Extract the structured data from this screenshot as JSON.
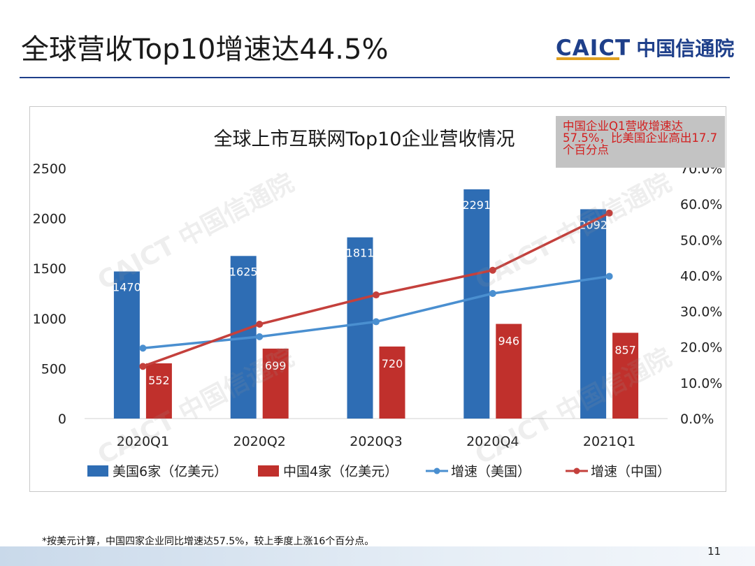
{
  "slide": {
    "title": "全球营收Top10增速达44.5%",
    "logo_mark": "CAICT",
    "logo_cn": "中国信通院",
    "footnote": "*按美元计算，中国四家企业同比增速达57.5%，较上季度上涨16个百分点。",
    "page_number": "11",
    "watermark": "CAICT 中国信通院"
  },
  "callout": {
    "text": "中国企业Q1营收增速达57.5%，比美国企业高出17.7个百分点"
  },
  "colors": {
    "us_bar": "#2e6db4",
    "cn_bar": "#c0302c",
    "us_line": "#4a8fd0",
    "cn_line": "#c4403c",
    "brand": "#1e3f8a"
  },
  "chart_data": {
    "type": "bar",
    "title": "全球上市互联网Top10企业营收情况",
    "categories": [
      "2020Q1",
      "2020Q2",
      "2020Q3",
      "2020Q4",
      "2021Q1"
    ],
    "series": [
      {
        "name": "美国6家（亿美元）",
        "kind": "bar",
        "axis": "left",
        "values": [
          1470,
          1625,
          1811,
          2291,
          2092
        ]
      },
      {
        "name": "中国4家（亿美元）",
        "kind": "bar",
        "axis": "left",
        "values": [
          552,
          699,
          720,
          946,
          857
        ]
      },
      {
        "name": "增速（美国）",
        "kind": "line",
        "axis": "right",
        "values": [
          19.7,
          22.9,
          27.1,
          35.0,
          39.8
        ]
      },
      {
        "name": "增速（中国）",
        "kind": "line",
        "axis": "right",
        "values": [
          14.6,
          26.4,
          34.6,
          41.5,
          57.5
        ]
      }
    ],
    "y_left": {
      "min": 0,
      "max": 2500,
      "ticks": [
        "0",
        "500",
        "1000",
        "1500",
        "2000",
        "2500"
      ]
    },
    "y_right": {
      "min": 0,
      "max": 70,
      "ticks": [
        "0.0%",
        "10.0%",
        "20.0%",
        "30.0%",
        "40.0%",
        "50.0%",
        "60.0%",
        "70.0%"
      ]
    },
    "legend_position": "bottom",
    "grid": false
  }
}
